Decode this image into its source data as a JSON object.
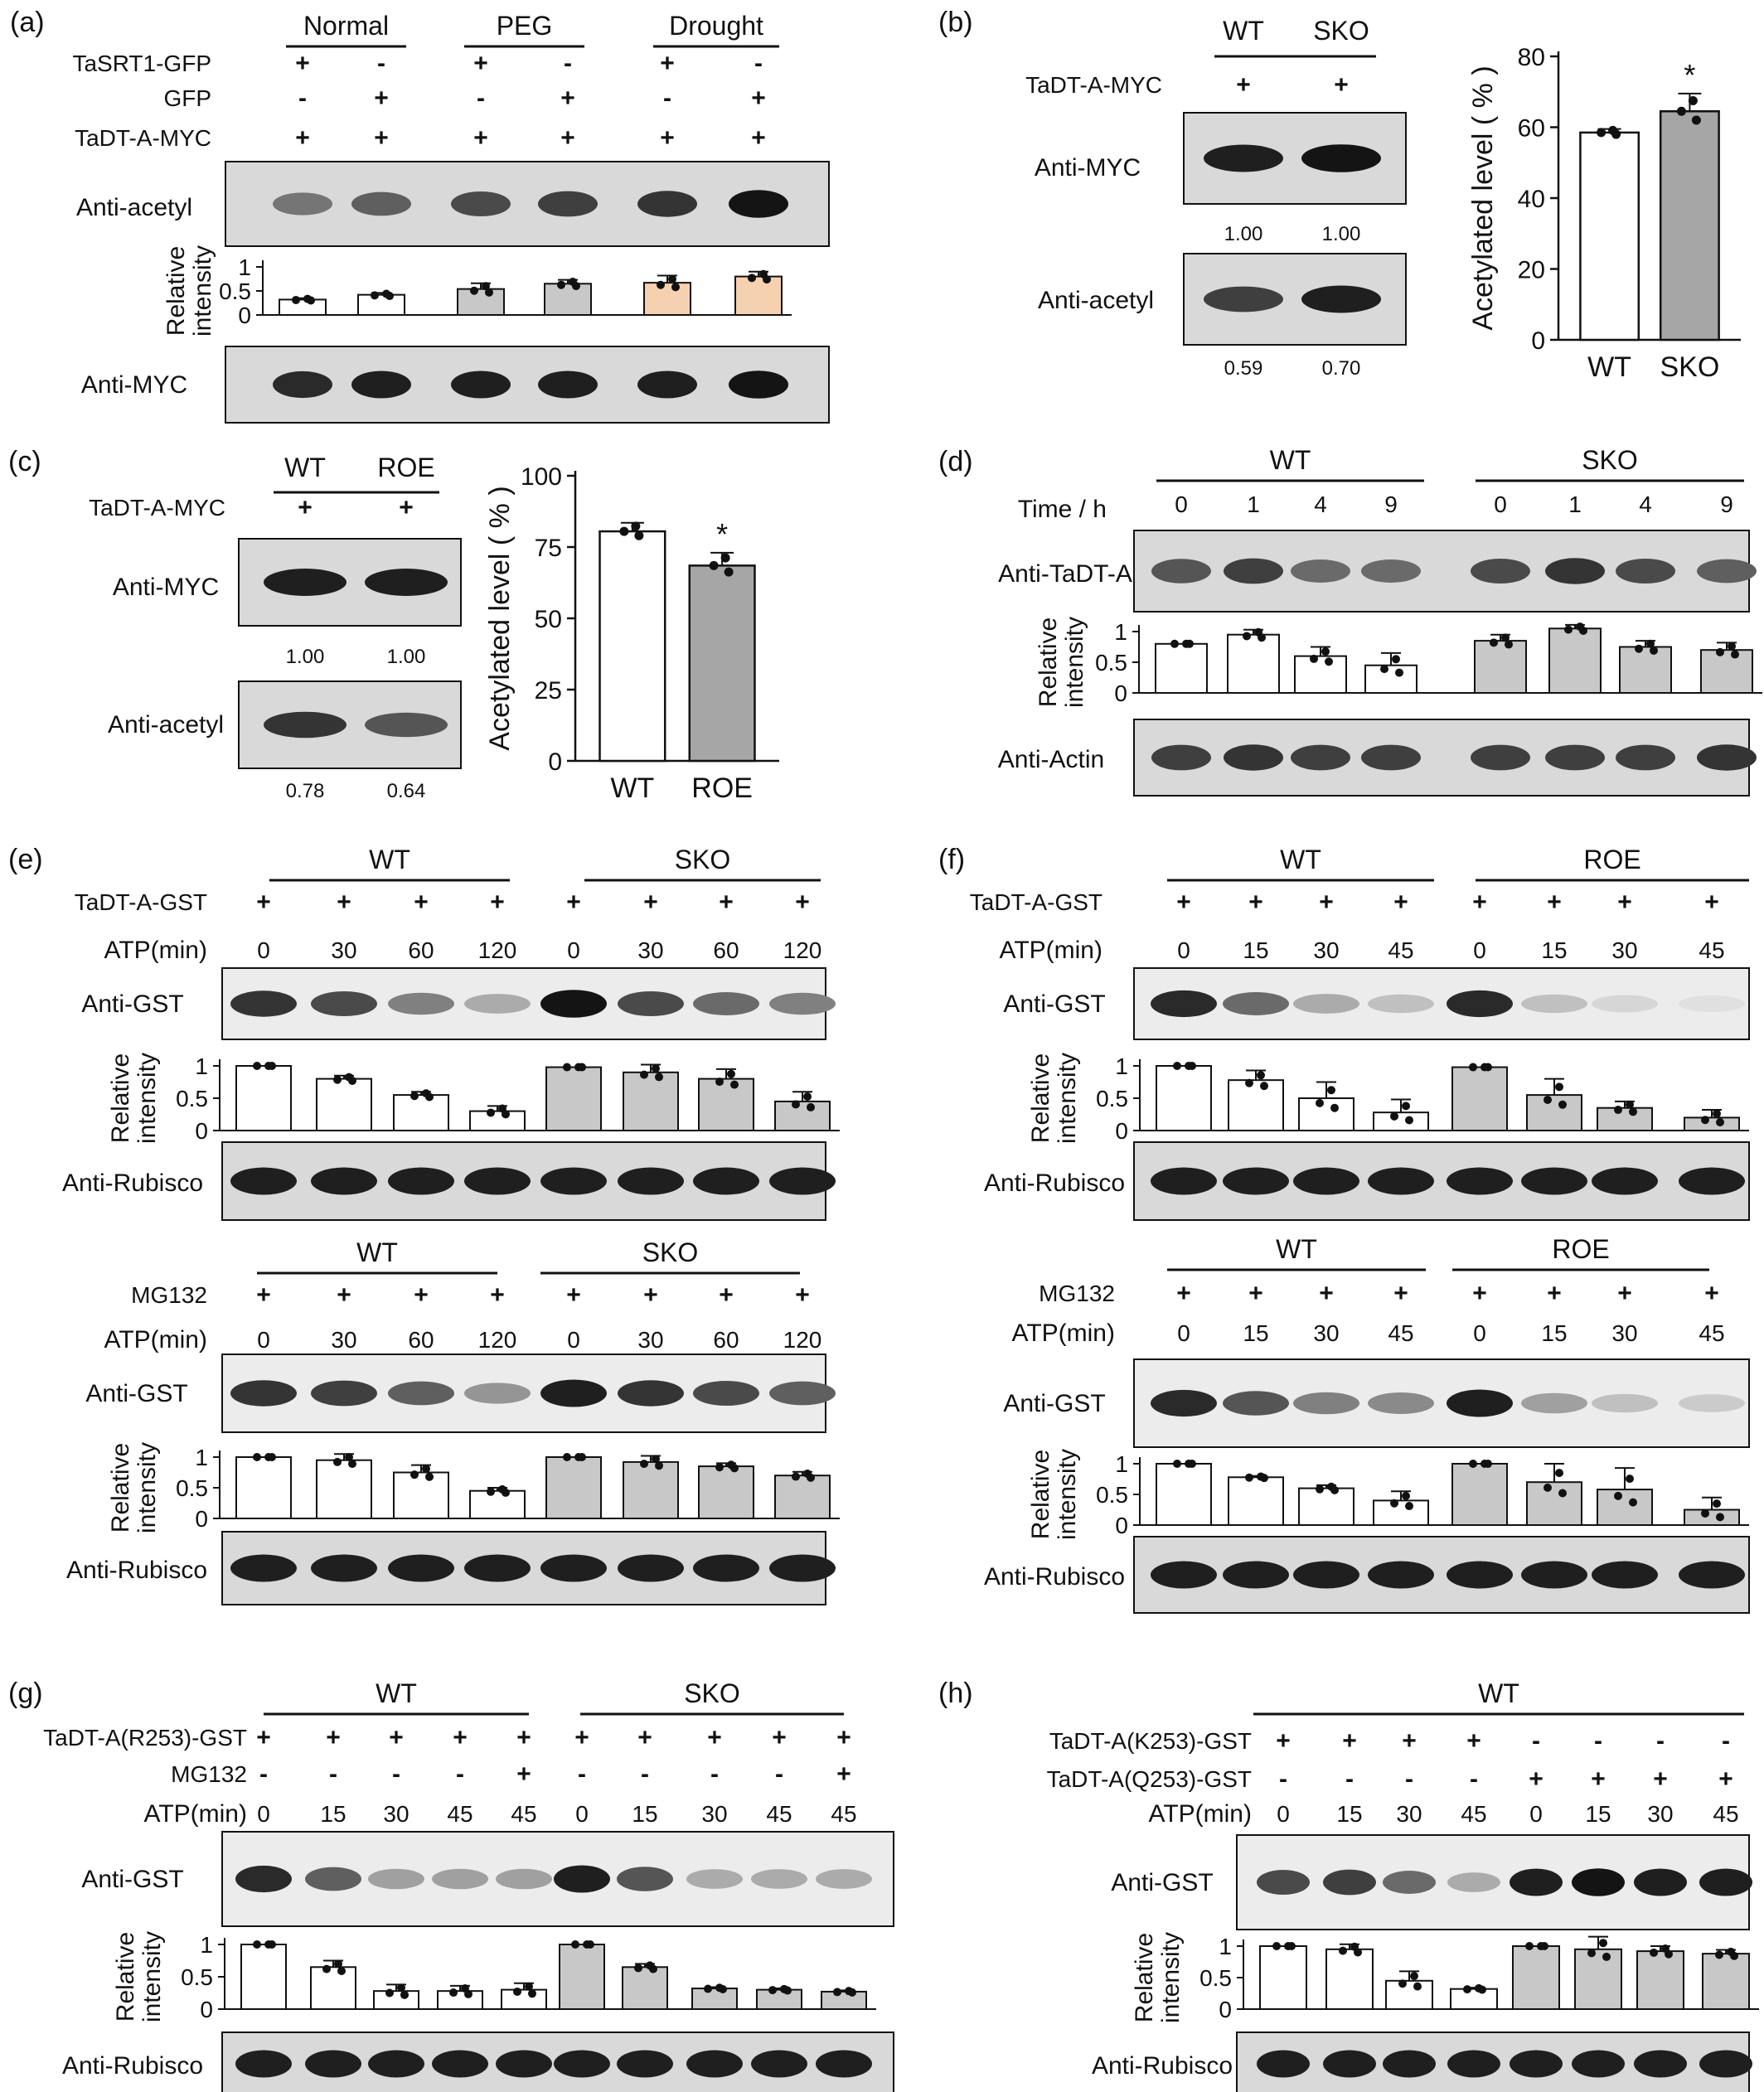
{
  "panels": [
    {
      "id": "a",
      "label": "(a)",
      "groups": [
        "Normal",
        "PEG",
        "Drought"
      ],
      "rows": [
        {
          "label": "TaSRT1-GFP",
          "signs": [
            "+",
            "-",
            "+",
            "-",
            "+",
            "-"
          ]
        },
        {
          "label": "GFP",
          "signs": [
            "-",
            "+",
            "-",
            "+",
            "-",
            "+"
          ]
        },
        {
          "label": "TaDT-A-MYC",
          "signs": [
            "+",
            "+",
            "+",
            "+",
            "+",
            "+"
          ]
        }
      ],
      "blots": [
        "Anti-acetyl",
        "Anti-MYC"
      ],
      "chart_data": {
        "type": "bar",
        "ylabel": "Relative intensity",
        "ylim": [
          0,
          1
        ],
        "yticks": [
          "1",
          "0.5",
          "0"
        ],
        "values": [
          0.32,
          0.42,
          0.54,
          0.65,
          0.67,
          0.8
        ],
        "errors": [
          0.03,
          0.04,
          0.12,
          0.08,
          0.15,
          0.1
        ],
        "colors": [
          "#ffffff",
          "#ffffff",
          "#c8c8c8",
          "#c8c8c8",
          "#f6d1b0",
          "#f6d1b0"
        ]
      }
    },
    {
      "id": "b",
      "label": "(b)",
      "groups": [
        "WT",
        "SKO"
      ],
      "rows": [
        {
          "label": "TaDT-A-MYC",
          "signs": [
            "+",
            "+"
          ]
        }
      ],
      "blots": [
        "Anti-MYC",
        "Anti-acetyl"
      ],
      "quant": [
        [
          "1.00",
          "1.00"
        ],
        [
          "0.59",
          "0.70"
        ]
      ],
      "chart_data": {
        "type": "bar",
        "categories": [
          "WT",
          "SKO"
        ],
        "values": [
          58.5,
          64.5
        ],
        "errors": [
          1.0,
          5.0
        ],
        "ylabel": "Acetylated level ( % )",
        "ylim": [
          0,
          80
        ],
        "yticks": [
          "0",
          "20",
          "40",
          "60",
          "80"
        ],
        "significance": [
          "",
          "*"
        ],
        "colors": [
          "#ffffff",
          "#a6a6a6"
        ]
      }
    },
    {
      "id": "c",
      "label": "(c)",
      "groups": [
        "WT",
        "ROE"
      ],
      "rows": [
        {
          "label": "TaDT-A-MYC",
          "signs": [
            "+",
            "+"
          ]
        }
      ],
      "blots": [
        "Anti-MYC",
        "Anti-acetyl"
      ],
      "quant": [
        [
          "1.00",
          "1.00"
        ],
        [
          "0.78",
          "0.64"
        ]
      ],
      "chart_data": {
        "type": "bar",
        "categories": [
          "WT",
          "ROE"
        ],
        "values": [
          80.5,
          68.5
        ],
        "errors": [
          3.0,
          4.5
        ],
        "ylabel": "Acetylated level ( % )",
        "ylim": [
          0,
          100
        ],
        "yticks": [
          "0",
          "25",
          "50",
          "75",
          "100"
        ],
        "significance": [
          "",
          "*"
        ],
        "colors": [
          "#ffffff",
          "#a6a6a6"
        ]
      }
    },
    {
      "id": "d",
      "label": "(d)",
      "groups": [
        "WT",
        "SKO"
      ],
      "rowLabel": "Time / h",
      "times": [
        "0",
        "1",
        "4",
        "9",
        "0",
        "1",
        "4",
        "9"
      ],
      "blots": [
        "Anti-TaDT-A",
        "Anti-Actin"
      ],
      "chart_data": {
        "type": "bar",
        "ylabel": "Relative intensity",
        "ylim": [
          0,
          1
        ],
        "yticks": [
          "1",
          "0.5",
          "0"
        ],
        "values": [
          0.8,
          0.95,
          0.6,
          0.45,
          0.85,
          1.05,
          0.75,
          0.7
        ],
        "errors": [
          0.0,
          0.08,
          0.15,
          0.2,
          0.1,
          0.06,
          0.1,
          0.12
        ],
        "colors": [
          "#ffffff",
          "#ffffff",
          "#ffffff",
          "#ffffff",
          "#c8c8c8",
          "#c8c8c8",
          "#c8c8c8",
          "#c8c8c8"
        ]
      }
    },
    {
      "id": "e",
      "label": "(e)",
      "groups": [
        "WT",
        "SKO"
      ],
      "rows": [
        {
          "label": "TaDT-A-GST",
          "signs": [
            "+",
            "+",
            "+",
            "+",
            "+",
            "+",
            "+",
            "+"
          ]
        }
      ],
      "atp": {
        "label": "ATP(min)",
        "values": [
          "0",
          "30",
          "60",
          "120",
          "0",
          "30",
          "60",
          "120"
        ]
      },
      "blots": [
        "Anti-GST",
        "Anti-Rubisco"
      ],
      "chart_data": {
        "type": "bar",
        "ylabel": "Relative intensity",
        "ylim": [
          0,
          1
        ],
        "yticks": [
          "1",
          "0.5",
          "0"
        ],
        "values": [
          1.0,
          0.8,
          0.55,
          0.3,
          0.98,
          0.9,
          0.8,
          0.45
        ],
        "errors": [
          0.0,
          0.05,
          0.05,
          0.08,
          0.0,
          0.12,
          0.15,
          0.15
        ],
        "colors": [
          "#ffffff",
          "#ffffff",
          "#ffffff",
          "#ffffff",
          "#c8c8c8",
          "#c8c8c8",
          "#c8c8c8",
          "#c8c8c8"
        ]
      }
    },
    {
      "id": "e2",
      "label": "",
      "groups": [
        "WT",
        "SKO"
      ],
      "rows": [
        {
          "label": "MG132",
          "signs": [
            "+",
            "+",
            "+",
            "+",
            "+",
            "+",
            "+",
            "+"
          ]
        }
      ],
      "atp": {
        "label": "ATP(min)",
        "values": [
          "0",
          "30",
          "60",
          "120",
          "0",
          "30",
          "60",
          "120"
        ]
      },
      "blots": [
        "Anti-GST",
        "Anti-Rubisco"
      ],
      "chart_data": {
        "type": "bar",
        "ylabel": "Relative intensity",
        "ylim": [
          0,
          1
        ],
        "yticks": [
          "1",
          "0.5",
          "0"
        ],
        "values": [
          1.0,
          0.95,
          0.75,
          0.45,
          1.0,
          0.92,
          0.85,
          0.7
        ],
        "errors": [
          0.0,
          0.1,
          0.12,
          0.05,
          0.0,
          0.1,
          0.05,
          0.06
        ],
        "colors": [
          "#ffffff",
          "#ffffff",
          "#ffffff",
          "#ffffff",
          "#c8c8c8",
          "#c8c8c8",
          "#c8c8c8",
          "#c8c8c8"
        ]
      }
    },
    {
      "id": "f",
      "label": "(f)",
      "groups": [
        "WT",
        "ROE"
      ],
      "rows": [
        {
          "label": "TaDT-A-GST",
          "signs": [
            "+",
            "+",
            "+",
            "+",
            "+",
            "+",
            "+",
            "+"
          ]
        }
      ],
      "atp": {
        "label": "ATP(min)",
        "values": [
          "0",
          "15",
          "30",
          "45",
          "0",
          "15",
          "30",
          "45"
        ]
      },
      "blots": [
        "Anti-GST",
        "Anti-Rubisco"
      ],
      "chart_data": {
        "type": "bar",
        "ylabel": "Relative intensity",
        "ylim": [
          0,
          1
        ],
        "yticks": [
          "1",
          "0.5",
          "0"
        ],
        "values": [
          1.0,
          0.78,
          0.5,
          0.28,
          0.98,
          0.55,
          0.35,
          0.2
        ],
        "errors": [
          0.0,
          0.15,
          0.25,
          0.2,
          0.0,
          0.25,
          0.1,
          0.12
        ],
        "colors": [
          "#ffffff",
          "#ffffff",
          "#ffffff",
          "#ffffff",
          "#c8c8c8",
          "#c8c8c8",
          "#c8c8c8",
          "#c8c8c8"
        ]
      }
    },
    {
      "id": "f2",
      "label": "",
      "groups": [
        "WT",
        "ROE"
      ],
      "rows": [
        {
          "label": "MG132",
          "signs": [
            "+",
            "+",
            "+",
            "+",
            "+",
            "+",
            "+",
            "+"
          ]
        }
      ],
      "atp": {
        "label": "ATP(min)",
        "values": [
          "0",
          "15",
          "30",
          "45",
          "0",
          "15",
          "30",
          "45"
        ]
      },
      "blots": [
        "Anti-GST",
        "Anti-Rubisco"
      ],
      "chart_data": {
        "type": "bar",
        "ylabel": "Relative intensity",
        "ylim": [
          0,
          1
        ],
        "yticks": [
          "1",
          "0.5",
          "0"
        ],
        "values": [
          1.0,
          0.78,
          0.6,
          0.4,
          1.0,
          0.7,
          0.58,
          0.25
        ],
        "errors": [
          0.0,
          0.02,
          0.05,
          0.15,
          0.0,
          0.3,
          0.35,
          0.2
        ],
        "colors": [
          "#ffffff",
          "#ffffff",
          "#ffffff",
          "#ffffff",
          "#c8c8c8",
          "#c8c8c8",
          "#c8c8c8",
          "#c8c8c8"
        ]
      }
    },
    {
      "id": "g",
      "label": "(g)",
      "groups": [
        "WT",
        "SKO"
      ],
      "rows": [
        {
          "label": "TaDT-A(R253)-GST",
          "signs": [
            "+",
            "+",
            "+",
            "+",
            "+",
            "+",
            "+",
            "+",
            "+",
            "+"
          ]
        },
        {
          "label": "MG132",
          "signs": [
            "-",
            "-",
            "-",
            "-",
            "+",
            "-",
            "-",
            "-",
            "-",
            "+"
          ]
        }
      ],
      "atp": {
        "label": "ATP(min)",
        "values": [
          "0",
          "15",
          "30",
          "45",
          "45",
          "0",
          "15",
          "30",
          "45",
          "45"
        ]
      },
      "blots": [
        "Anti-GST",
        "Anti-Rubisco"
      ],
      "chart_data": {
        "type": "bar",
        "ylabel": "Relative intensity",
        "ylim": [
          0,
          1
        ],
        "yticks": [
          "1",
          "0.5",
          "0"
        ],
        "values": [
          1.0,
          0.65,
          0.28,
          0.28,
          0.3,
          1.0,
          0.65,
          0.32,
          0.3,
          0.27
        ],
        "errors": [
          0.0,
          0.1,
          0.1,
          0.08,
          0.1,
          0.0,
          0.05,
          0.02,
          0.02,
          0.02
        ],
        "colors": [
          "#ffffff",
          "#ffffff",
          "#ffffff",
          "#ffffff",
          "#ffffff",
          "#c8c8c8",
          "#c8c8c8",
          "#c8c8c8",
          "#c8c8c8",
          "#c8c8c8"
        ]
      }
    },
    {
      "id": "h",
      "label": "(h)",
      "groups": [
        "WT"
      ],
      "rows": [
        {
          "label": "TaDT-A(K253)-GST",
          "signs": [
            "+",
            "+",
            "+",
            "+",
            "-",
            "-",
            "-",
            "-"
          ]
        },
        {
          "label": "TaDT-A(Q253)-GST",
          "signs": [
            "-",
            "-",
            "-",
            "-",
            "+",
            "+",
            "+",
            "+"
          ]
        }
      ],
      "atp": {
        "label": "ATP(min)",
        "values": [
          "0",
          "15",
          "30",
          "45",
          "0",
          "15",
          "30",
          "45"
        ]
      },
      "blots": [
        "Anti-GST",
        "Anti-Rubisco"
      ],
      "chart_data": {
        "type": "bar",
        "ylabel": "Relative intensity",
        "ylim": [
          0,
          1
        ],
        "yticks": [
          "1",
          "0.5",
          "0"
        ],
        "values": [
          1.0,
          0.95,
          0.45,
          0.32,
          1.0,
          0.95,
          0.92,
          0.88
        ],
        "errors": [
          0.0,
          0.08,
          0.15,
          0.02,
          0.0,
          0.2,
          0.08,
          0.06
        ],
        "colors": [
          "#ffffff",
          "#ffffff",
          "#ffffff",
          "#ffffff",
          "#c8c8c8",
          "#c8c8c8",
          "#c8c8c8",
          "#c8c8c8"
        ]
      }
    }
  ]
}
